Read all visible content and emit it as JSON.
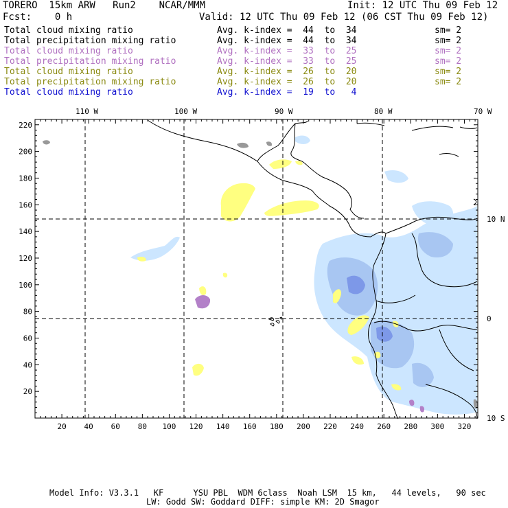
{
  "header": {
    "model_name": "TORERO  15km ARW   Run2    NCAR/MMM",
    "init": "Init: 12 UTC Thu 09 Feb 12",
    "fcst": "Fcst:    0 h",
    "valid": "Valid: 12 UTC Thu 09 Feb 12 (06 CST Thu 09 Feb 12)"
  },
  "legend": [
    {
      "field": "Total cloud mixing ratio",
      "range": "Avg. k-index =  44  to  34",
      "sm": "sm= 2",
      "color": "#000000"
    },
    {
      "field": "Total precipitation mixing ratio",
      "range": "Avg. k-index =  44  to  34",
      "sm": "sm= 2",
      "color": "#000000"
    },
    {
      "field": "Total cloud mixing ratio",
      "range": "Avg. k-index =  33  to  25",
      "sm": "sm= 2",
      "color": "#b070c0"
    },
    {
      "field": "Total precipitation mixing ratio",
      "range": "Avg. k-index =  33  to  25",
      "sm": "sm= 2",
      "color": "#b070c0"
    },
    {
      "field": "Total cloud mixing ratio",
      "range": "Avg. k-index =  26  to  20",
      "sm": "sm= 2",
      "color": "#8a8a10"
    },
    {
      "field": "Total precipitation mixing ratio",
      "range": "Avg. k-index =  26  to  20",
      "sm": "sm= 2",
      "color": "#8a8a10"
    },
    {
      "field": "Total cloud mixing ratio",
      "range": "Avg. k-index =  19  to   4",
      "sm": "",
      "color": "#1010d0"
    }
  ],
  "map": {
    "lon_labels": [
      "110 W",
      "100 W",
      "90 W",
      "80 W",
      "70 W"
    ],
    "lat_labels": [
      "10 N",
      "0",
      "10 S"
    ],
    "x_ticks": [
      "20",
      "40",
      "60",
      "80",
      "100",
      "120",
      "140",
      "160",
      "180",
      "200",
      "220",
      "240",
      "260",
      "280",
      "300",
      "320"
    ],
    "y_ticks": [
      "220",
      "200",
      "180",
      "160",
      "140",
      "120",
      "100",
      "80",
      "60",
      "40",
      "20"
    ]
  },
  "footer": {
    "line1": "Model Info: V3.3.1   KF      YSU PBL  WDM 6class  Noah LSM  15 km,   44 levels,   90 sec",
    "line2": "LW: Godd SW: Goddard DIFF: simple KM: 2D Smagor"
  },
  "colors": {
    "yellow": "#ffff80",
    "light_blue": "#cce6ff",
    "mid_blue": "#a8c6f2",
    "dark_blue": "#7d98e8",
    "purple": "#b380c8",
    "gray": "#999999"
  }
}
